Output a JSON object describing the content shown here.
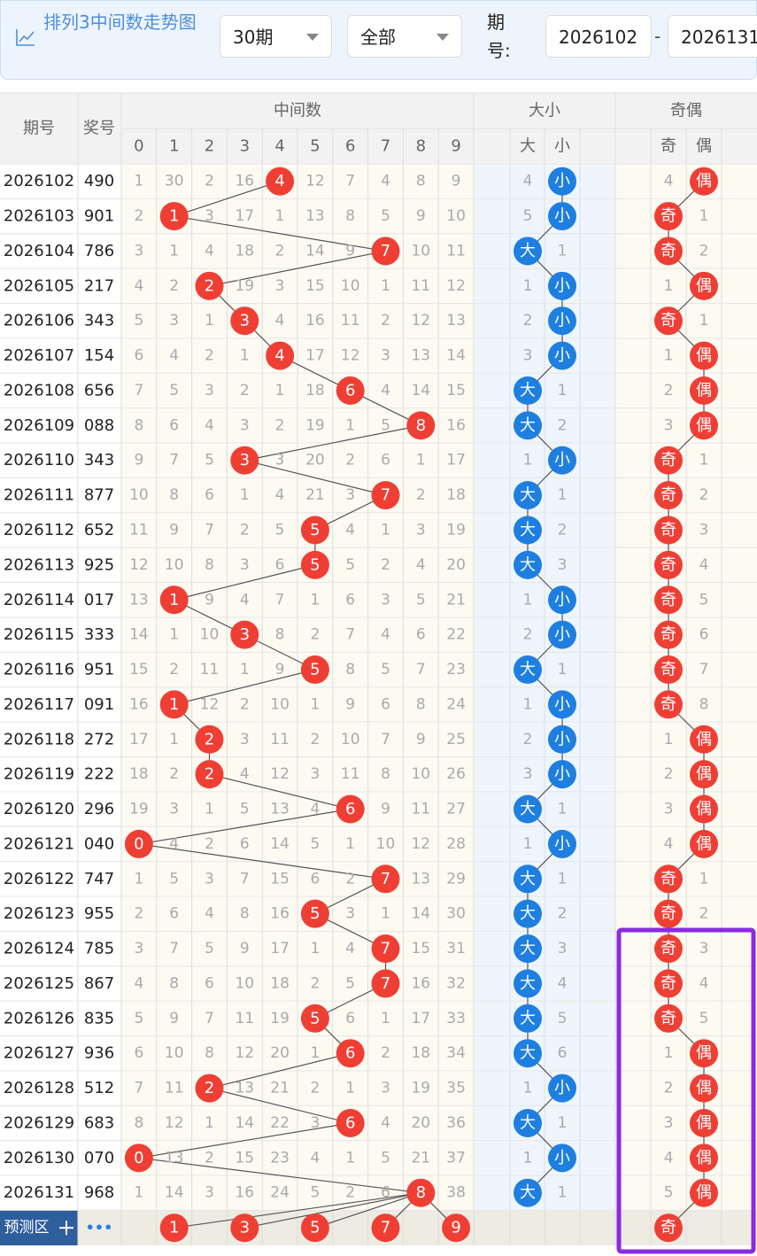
{
  "header": {
    "title": "排列3中间数走势图",
    "period_count": "30期",
    "filter": "全部",
    "range_label": "期号:",
    "range_start": "2026102",
    "range_sep": "-",
    "range_end": "2026131"
  },
  "table": {
    "columns": {
      "period": "期号",
      "number": "奖号",
      "middle": "中间数",
      "size": "大小",
      "parity": "奇偶",
      "digits": [
        "0",
        "1",
        "2",
        "3",
        "4",
        "5",
        "6",
        "7",
        "8",
        "9"
      ],
      "size_sub": [
        "大",
        "小"
      ],
      "parity_sub": [
        "奇",
        "偶"
      ]
    },
    "rows": [
      {
        "period": "2026102",
        "number": "490",
        "middle": [
          1,
          30,
          2,
          16,
          4,
          12,
          7,
          4,
          8,
          9
        ],
        "size": [
          4,
          "小"
        ],
        "parity": [
          4,
          "偶"
        ]
      },
      {
        "period": "2026103",
        "number": "901",
        "middle": [
          2,
          1,
          3,
          17,
          1,
          13,
          8,
          5,
          9,
          10
        ],
        "size": [
          5,
          "小"
        ],
        "parity": [
          "奇",
          1
        ]
      },
      {
        "period": "2026104",
        "number": "786",
        "middle": [
          3,
          1,
          4,
          18,
          2,
          14,
          9,
          7,
          10,
          11
        ],
        "size": [
          "大",
          1
        ],
        "parity": [
          "奇",
          2
        ]
      },
      {
        "period": "2026105",
        "number": "217",
        "middle": [
          4,
          2,
          2,
          19,
          3,
          15,
          10,
          1,
          11,
          12
        ],
        "size": [
          1,
          "小"
        ],
        "parity": [
          1,
          "偶"
        ]
      },
      {
        "period": "2026106",
        "number": "343",
        "middle": [
          5,
          3,
          1,
          3,
          4,
          16,
          11,
          2,
          12,
          13
        ],
        "size": [
          2,
          "小"
        ],
        "parity": [
          "奇",
          1
        ]
      },
      {
        "period": "2026107",
        "number": "154",
        "middle": [
          6,
          4,
          2,
          1,
          4,
          17,
          12,
          3,
          13,
          14
        ],
        "size": [
          3,
          "小"
        ],
        "parity": [
          1,
          "偶"
        ]
      },
      {
        "period": "2026108",
        "number": "656",
        "middle": [
          7,
          5,
          3,
          2,
          1,
          18,
          6,
          4,
          14,
          15
        ],
        "size": [
          "大",
          1
        ],
        "parity": [
          2,
          "偶"
        ]
      },
      {
        "period": "2026109",
        "number": "088",
        "middle": [
          8,
          6,
          4,
          3,
          2,
          19,
          1,
          5,
          8,
          16
        ],
        "size": [
          "大",
          2
        ],
        "parity": [
          3,
          "偶"
        ]
      },
      {
        "period": "2026110",
        "number": "343",
        "middle": [
          9,
          7,
          5,
          3,
          3,
          20,
          2,
          6,
          1,
          17
        ],
        "size": [
          1,
          "小"
        ],
        "parity": [
          "奇",
          1
        ]
      },
      {
        "period": "2026111",
        "number": "877",
        "middle": [
          10,
          8,
          6,
          1,
          4,
          21,
          3,
          7,
          2,
          18
        ],
        "size": [
          "大",
          1
        ],
        "parity": [
          "奇",
          2
        ]
      },
      {
        "period": "2026112",
        "number": "652",
        "middle": [
          11,
          9,
          7,
          2,
          5,
          5,
          4,
          1,
          3,
          19
        ],
        "size": [
          "大",
          2
        ],
        "parity": [
          "奇",
          3
        ]
      },
      {
        "period": "2026113",
        "number": "925",
        "middle": [
          12,
          10,
          8,
          3,
          6,
          5,
          5,
          2,
          4,
          20
        ],
        "size": [
          "大",
          3
        ],
        "parity": [
          "奇",
          4
        ]
      },
      {
        "period": "2026114",
        "number": "017",
        "middle": [
          13,
          1,
          9,
          4,
          7,
          1,
          6,
          3,
          5,
          21
        ],
        "size": [
          1,
          "小"
        ],
        "parity": [
          "奇",
          5
        ]
      },
      {
        "period": "2026115",
        "number": "333",
        "middle": [
          14,
          1,
          10,
          3,
          8,
          2,
          7,
          4,
          6,
          22
        ],
        "size": [
          2,
          "小"
        ],
        "parity": [
          "奇",
          6
        ]
      },
      {
        "period": "2026116",
        "number": "951",
        "middle": [
          15,
          2,
          11,
          1,
          9,
          5,
          8,
          5,
          7,
          23
        ],
        "size": [
          "大",
          1
        ],
        "parity": [
          "奇",
          7
        ]
      },
      {
        "period": "2026117",
        "number": "091",
        "middle": [
          16,
          1,
          12,
          2,
          10,
          1,
          9,
          6,
          8,
          24
        ],
        "size": [
          1,
          "小"
        ],
        "parity": [
          "奇",
          8
        ]
      },
      {
        "period": "2026118",
        "number": "272",
        "middle": [
          17,
          1,
          2,
          3,
          11,
          2,
          10,
          7,
          9,
          25
        ],
        "size": [
          2,
          "小"
        ],
        "parity": [
          1,
          "偶"
        ]
      },
      {
        "period": "2026119",
        "number": "222",
        "middle": [
          18,
          2,
          2,
          4,
          12,
          3,
          11,
          8,
          10,
          26
        ],
        "size": [
          3,
          "小"
        ],
        "parity": [
          2,
          "偶"
        ]
      },
      {
        "period": "2026120",
        "number": "296",
        "middle": [
          19,
          3,
          1,
          5,
          13,
          4,
          6,
          9,
          11,
          27
        ],
        "size": [
          "大",
          1
        ],
        "parity": [
          3,
          "偶"
        ]
      },
      {
        "period": "2026121",
        "number": "040",
        "middle": [
          0,
          4,
          2,
          6,
          14,
          5,
          1,
          10,
          12,
          28
        ],
        "size": [
          1,
          "小"
        ],
        "parity": [
          4,
          "偶"
        ]
      },
      {
        "period": "2026122",
        "number": "747",
        "middle": [
          1,
          5,
          3,
          7,
          15,
          6,
          2,
          7,
          13,
          29
        ],
        "size": [
          "大",
          1
        ],
        "parity": [
          "奇",
          1
        ]
      },
      {
        "period": "2026123",
        "number": "955",
        "middle": [
          2,
          6,
          4,
          8,
          16,
          5,
          3,
          1,
          14,
          30
        ],
        "size": [
          "大",
          2
        ],
        "parity": [
          "奇",
          2
        ]
      },
      {
        "period": "2026124",
        "number": "785",
        "middle": [
          3,
          7,
          5,
          9,
          17,
          1,
          4,
          7,
          15,
          31
        ],
        "size": [
          "大",
          3
        ],
        "parity": [
          "奇",
          3
        ]
      },
      {
        "period": "2026125",
        "number": "867",
        "middle": [
          4,
          8,
          6,
          10,
          18,
          2,
          5,
          7,
          16,
          32
        ],
        "size": [
          "大",
          4
        ],
        "parity": [
          "奇",
          4
        ]
      },
      {
        "period": "2026126",
        "number": "835",
        "middle": [
          5,
          9,
          7,
          11,
          19,
          5,
          6,
          1,
          17,
          33
        ],
        "size": [
          "大",
          5
        ],
        "parity": [
          "奇",
          5
        ]
      },
      {
        "period": "2026127",
        "number": "936",
        "middle": [
          6,
          10,
          8,
          12,
          20,
          1,
          6,
          2,
          18,
          34
        ],
        "size": [
          "大",
          6
        ],
        "parity": [
          1,
          "偶"
        ]
      },
      {
        "period": "2026128",
        "number": "512",
        "middle": [
          7,
          11,
          2,
          13,
          21,
          2,
          1,
          3,
          19,
          35
        ],
        "size": [
          1,
          "小"
        ],
        "parity": [
          2,
          "偶"
        ]
      },
      {
        "period": "2026129",
        "number": "683",
        "middle": [
          8,
          12,
          1,
          14,
          22,
          3,
          6,
          4,
          20,
          36
        ],
        "size": [
          "大",
          1
        ],
        "parity": [
          3,
          "偶"
        ]
      },
      {
        "period": "2026130",
        "number": "070",
        "middle": [
          0,
          13,
          2,
          15,
          23,
          4,
          1,
          5,
          21,
          37
        ],
        "size": [
          1,
          "小"
        ],
        "parity": [
          4,
          "偶"
        ]
      },
      {
        "period": "2026131",
        "number": "968",
        "middle": [
          1,
          14,
          3,
          16,
          24,
          5,
          2,
          6,
          8,
          38
        ],
        "size": [
          "大",
          1
        ],
        "parity": [
          5,
          "偶"
        ]
      }
    ],
    "prediction": {
      "label": "预测区",
      "more": "•••",
      "middle": [
        1,
        3,
        5,
        7,
        9
      ],
      "parity": "奇"
    }
  }
}
